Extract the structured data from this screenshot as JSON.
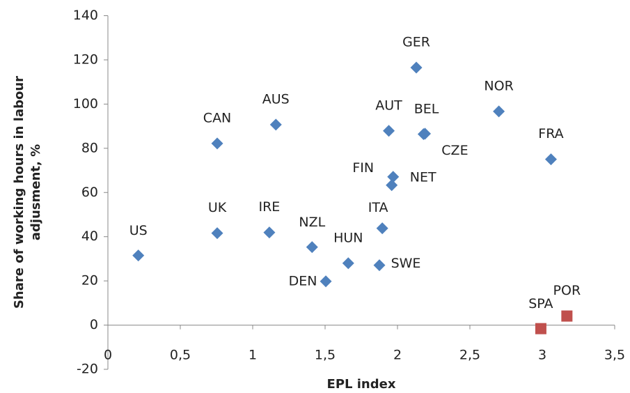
{
  "chart_data": {
    "type": "scatter",
    "xlabel": "EPL index",
    "ylabel": [
      "Share of working hours in labour",
      "adjusment, %"
    ],
    "xlim": [
      0,
      3.5
    ],
    "ylim": [
      -20,
      140
    ],
    "xticks": [
      0,
      {
        "value": 0.5,
        "label": "0,5"
      },
      1,
      {
        "value": 1.5,
        "label": "1,5"
      },
      2,
      {
        "value": 2.5,
        "label": "2,5"
      },
      3,
      {
        "value": 3.5,
        "label": "3,5"
      }
    ],
    "yticks": [
      -20,
      0,
      20,
      40,
      60,
      80,
      100,
      120,
      140
    ],
    "series": [
      {
        "color": "#4f81bd",
        "marker": "diamond",
        "labels": [
          "US",
          "UK",
          "CAN",
          "AUS",
          "IRE",
          "NZL",
          "DEN",
          "HUN",
          "ITA",
          "SWE",
          "FIN",
          "NET",
          "AUT",
          "BEL",
          "CZE",
          "GER",
          "NOR",
          "FRA"
        ],
        "x": [
          0.21,
          0.755,
          0.755,
          1.16,
          1.115,
          1.41,
          1.505,
          1.66,
          1.895,
          1.875,
          1.97,
          1.96,
          1.94,
          2.19,
          2.18,
          2.13,
          2.7,
          3.06
        ],
        "values": [
          31.5,
          41.6,
          82.2,
          90.7,
          41.9,
          35.3,
          19.8,
          28,
          43.8,
          27.1,
          67.1,
          63.3,
          87.9,
          86.6,
          86.4,
          116.5,
          96.7,
          75
        ]
      },
      {
        "color": "#c0504d",
        "marker": "square",
        "labels": [
          "SPA",
          "POR"
        ],
        "x": [
          2.99,
          3.17
        ],
        "values": [
          -1.6,
          4.1
        ]
      }
    ]
  }
}
